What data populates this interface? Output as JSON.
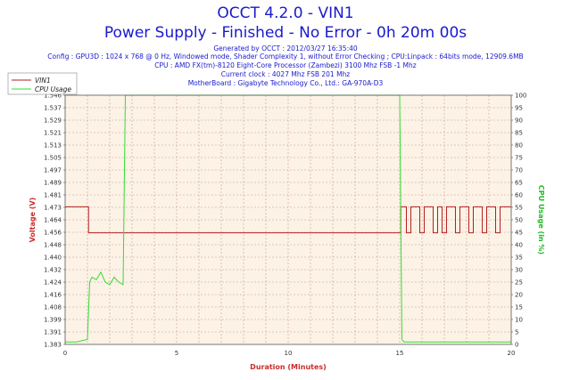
{
  "header": {
    "title_line1": "OCCT 4.2.0 - VIN1",
    "title_line2": "Power Supply - Finished - No Error - 0h 20m 00s",
    "generated": "Generated by OCCT : 2012/03/27 16:35:40",
    "config": "Config : GPU3D : 1024 x 768 @ 0 Hz, Windowed mode, Shader Complexity 1, without Error Checking ; CPU:Linpack : 64bits mode, 12909.6MB",
    "cpu": "CPU : AMD FX(tm)-8120 Eight-Core Processor (Zambezi) 3100 Mhz FSB -1 Mhz",
    "clock": "Current clock : 4027 Mhz FSB 201 Mhz",
    "motherboard": "MotherBoard : Gigabyte Technology Co., Ltd.: GA-970A-D3"
  },
  "colors": {
    "vin1": "#b22222",
    "cpu": "#33dd33",
    "plot_bg": "#fdf2e6",
    "grid": "#c49a9a",
    "title": "#1a1acc"
  },
  "chart_data": {
    "type": "line",
    "xlabel": "Duration (Minutes)",
    "ylabel_left": "Voltage (V)",
    "ylabel_right": "CPU Usage (in %)",
    "x_range": [
      0,
      20
    ],
    "x_ticks": [
      "0",
      "5",
      "10",
      "15",
      "20"
    ],
    "y_left_range": [
      1.383,
      1.546
    ],
    "y_left_ticks": [
      "1.383",
      "1.391",
      "1.399",
      "1.408",
      "1.416",
      "1.424",
      "1.432",
      "1.440",
      "1.448",
      "1.456",
      "1.464",
      "1.473",
      "1.481",
      "1.489",
      "1.497",
      "1.505",
      "1.513",
      "1.521",
      "1.529",
      "1.537",
      "1.546"
    ],
    "y_right_range": [
      0,
      100
    ],
    "y_right_ticks": [
      "0",
      "5",
      "10",
      "15",
      "20",
      "25",
      "30",
      "35",
      "40",
      "45",
      "50",
      "55",
      "60",
      "65",
      "70",
      "75",
      "80",
      "85",
      "90",
      "95",
      "100"
    ],
    "grid": true,
    "legend_position": "top-left",
    "series": [
      {
        "name": "VIN1",
        "axis": "left",
        "x": [
          0.0,
          0.25,
          0.5,
          0.75,
          1.0,
          1.05,
          1.1,
          15.0,
          15.05,
          15.1,
          15.3,
          15.5,
          15.7,
          15.9,
          16.1,
          16.3,
          16.5,
          16.7,
          16.9,
          17.1,
          17.3,
          17.5,
          17.7,
          17.9,
          18.1,
          18.3,
          18.5,
          18.7,
          18.9,
          19.1,
          19.3,
          19.5,
          19.7,
          20.0
        ],
        "values": [
          1.473,
          1.473,
          1.473,
          1.473,
          1.473,
          1.456,
          1.456,
          1.456,
          1.473,
          1.473,
          1.456,
          1.473,
          1.473,
          1.456,
          1.473,
          1.473,
          1.456,
          1.473,
          1.456,
          1.473,
          1.473,
          1.456,
          1.473,
          1.473,
          1.456,
          1.473,
          1.473,
          1.456,
          1.473,
          1.473,
          1.456,
          1.473,
          1.473,
          1.473
        ]
      },
      {
        "name": "CPU Usage",
        "axis": "right",
        "x": [
          0.0,
          0.5,
          1.0,
          1.1,
          1.2,
          1.4,
          1.6,
          1.8,
          2.0,
          2.2,
          2.4,
          2.6,
          2.7,
          2.8,
          4.0,
          6.0,
          8.0,
          10.0,
          12.0,
          14.0,
          14.9,
          15.0,
          15.1,
          15.2,
          17.0,
          20.0
        ],
        "values": [
          1,
          1,
          2,
          25,
          27,
          26,
          29,
          25,
          24,
          27,
          25,
          24,
          100,
          100,
          100,
          100,
          100,
          100,
          100,
          100,
          100,
          100,
          2,
          1,
          1,
          1
        ]
      }
    ]
  }
}
